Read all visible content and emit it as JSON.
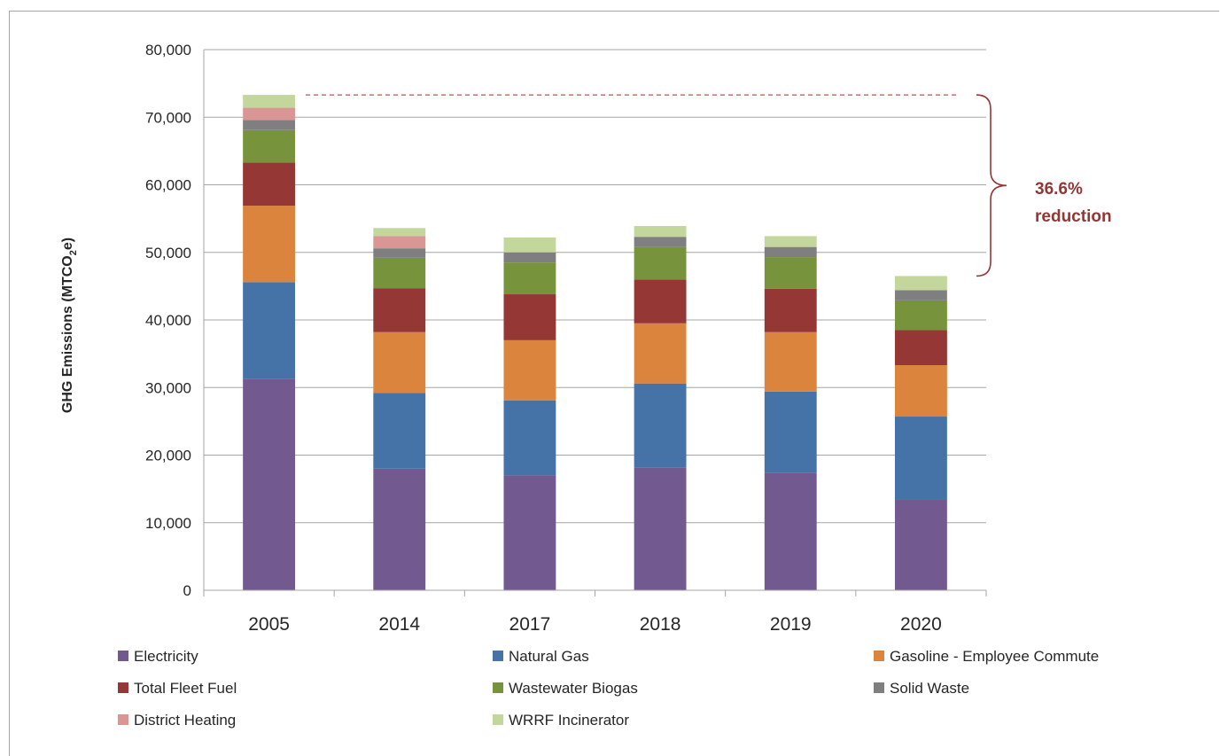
{
  "chart_data": {
    "type": "bar",
    "stacked": true,
    "title": "",
    "xlabel": "",
    "ylabel": "GHG Emissions (MTCO2e)",
    "ylabel_main": "GHG Emissions (MTCO",
    "ylabel_sub": "2",
    "ylabel_tail": "e)",
    "ylim": [
      0,
      80000
    ],
    "ytick_values": [
      0,
      10000,
      20000,
      30000,
      40000,
      50000,
      60000,
      70000,
      80000
    ],
    "ytick_labels": [
      "0",
      "10,000",
      "20,000",
      "30,000",
      "40,000",
      "50,000",
      "60,000",
      "70,000",
      "80,000"
    ],
    "grid": true,
    "legend_position": "bottom",
    "categories": [
      "2005",
      "2014",
      "2017",
      "2018",
      "2019",
      "2020"
    ],
    "series": [
      {
        "name": "Electricity",
        "color": "#725990",
        "values": [
          31300,
          18000,
          17000,
          18200,
          17400,
          13500
        ]
      },
      {
        "name": "Natural Gas",
        "color": "#4572a7",
        "values": [
          14300,
          11200,
          11100,
          12400,
          12000,
          12200
        ]
      },
      {
        "name": "Gasoline - Employee Commute",
        "color": "#db843d",
        "values": [
          11300,
          9000,
          8900,
          8900,
          8800,
          7600
        ]
      },
      {
        "name": "Total Fleet Fuel",
        "color": "#953735",
        "values": [
          6400,
          6500,
          6800,
          6500,
          6400,
          5200
        ]
      },
      {
        "name": "Wastewater Biogas",
        "color": "#77933c",
        "values": [
          4800,
          4500,
          4700,
          4800,
          4700,
          4400
        ]
      },
      {
        "name": "Solid Waste",
        "color": "#7f7f7f",
        "values": [
          1500,
          1400,
          1500,
          1500,
          1500,
          1500
        ]
      },
      {
        "name": "District Heating",
        "color": "#d99694",
        "values": [
          1800,
          1800,
          0,
          0,
          0,
          0
        ]
      },
      {
        "name": "WRRF Incinerator",
        "color": "#c3d69b",
        "values": [
          1900,
          1200,
          2200,
          1600,
          1600,
          2100
        ]
      }
    ],
    "annotation": {
      "line1": "36.6%",
      "line2": "reduction",
      "color": "#943634"
    }
  }
}
